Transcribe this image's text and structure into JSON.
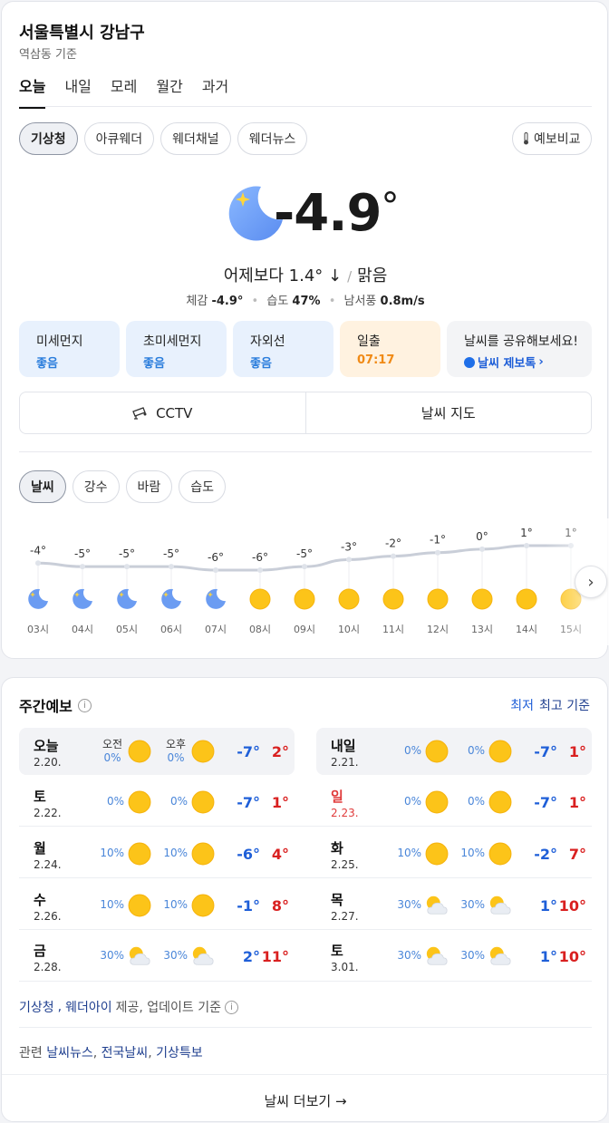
{
  "location": {
    "title": "서울특별시 강남구",
    "subtitle": "역삼동 기준"
  },
  "tabs": [
    "오늘",
    "내일",
    "모레",
    "월간",
    "과거"
  ],
  "sources": [
    "기상청",
    "아큐웨더",
    "웨더채널",
    "웨더뉴스"
  ],
  "compare_label": "예보비교",
  "current": {
    "temp": "-4.9",
    "deg": "°",
    "compare": "어제보다 1.4° ↓",
    "condition": "맑음",
    "feels_label": "체감",
    "feels_value": "-4.9°",
    "humidity_label": "습도",
    "humidity_value": "47%",
    "wind_label": "남서풍",
    "wind_value": "0.8m/s",
    "icon": "moon-star-icon"
  },
  "tiles": [
    {
      "label": "미세먼지",
      "value": "좋음",
      "bg": "#e8f1fd"
    },
    {
      "label": "초미세먼지",
      "value": "좋음",
      "bg": "#e8f1fd"
    },
    {
      "label": "자외선",
      "value": "좋음",
      "bg": "#e8f1fd"
    },
    {
      "label": "일출",
      "value": "07:17",
      "bg": "#fff2e0"
    },
    {
      "label": "날씨를 공유해보세요!",
      "value": "날씨 제보톡",
      "bg": "#f3f4f6"
    }
  ],
  "buttons": {
    "cctv": "CCTV",
    "map": "날씨 지도"
  },
  "hourly_tabs": [
    "날씨",
    "강수",
    "바람",
    "습도"
  ],
  "hourly": [
    {
      "time": "03시",
      "temp": "-4°",
      "icon": "moon"
    },
    {
      "time": "04시",
      "temp": "-5°",
      "icon": "moon"
    },
    {
      "time": "05시",
      "temp": "-5°",
      "icon": "moon"
    },
    {
      "time": "06시",
      "temp": "-5°",
      "icon": "moon"
    },
    {
      "time": "07시",
      "temp": "-6°",
      "icon": "moon"
    },
    {
      "time": "08시",
      "temp": "-6°",
      "icon": "sun"
    },
    {
      "time": "09시",
      "temp": "-5°",
      "icon": "sun"
    },
    {
      "time": "10시",
      "temp": "-3°",
      "icon": "sun"
    },
    {
      "time": "11시",
      "temp": "-2°",
      "icon": "sun"
    },
    {
      "time": "12시",
      "temp": "-1°",
      "icon": "sun"
    },
    {
      "time": "13시",
      "temp": "0°",
      "icon": "sun"
    },
    {
      "time": "14시",
      "temp": "1°",
      "icon": "sun"
    },
    {
      "time": "15시",
      "temp": "1°",
      "icon": "sun"
    }
  ],
  "chart_data": {
    "type": "line",
    "x": [
      "03시",
      "04시",
      "05시",
      "06시",
      "07시",
      "08시",
      "09시",
      "10시",
      "11시",
      "12시",
      "13시",
      "14시",
      "15시"
    ],
    "values": [
      -4,
      -5,
      -5,
      -5,
      -6,
      -6,
      -5,
      -3,
      -2,
      -1,
      0,
      1,
      1
    ],
    "title": "",
    "xlabel": "",
    "ylabel": "",
    "ylim": [
      -6,
      1
    ],
    "grid": false
  },
  "weekly": {
    "title": "주간예보",
    "legend": {
      "low": "최저",
      "high": "최고 기준"
    },
    "am_label": "오전",
    "pm_label": "오후",
    "days": [
      {
        "name": "오늘",
        "date": "2.20.",
        "am_pct": "0%",
        "pm_pct": "0%",
        "am_icon": "sun",
        "pm_icon": "sun",
        "min": "-7°",
        "max": "2°",
        "today": true
      },
      {
        "name": "내일",
        "date": "2.21.",
        "am_pct": "0%",
        "pm_pct": "0%",
        "am_icon": "sun",
        "pm_icon": "sun",
        "min": "-7°",
        "max": "1°",
        "today": true
      },
      {
        "name": "토",
        "date": "2.22.",
        "am_pct": "0%",
        "pm_pct": "0%",
        "am_icon": "sun",
        "pm_icon": "sun",
        "min": "-7°",
        "max": "1°"
      },
      {
        "name": "일",
        "date": "2.23.",
        "am_pct": "0%",
        "pm_pct": "0%",
        "am_icon": "sun",
        "pm_icon": "sun",
        "min": "-7°",
        "max": "1°",
        "sunday": true
      },
      {
        "name": "월",
        "date": "2.24.",
        "am_pct": "10%",
        "pm_pct": "10%",
        "am_icon": "sun",
        "pm_icon": "sun",
        "min": "-6°",
        "max": "4°"
      },
      {
        "name": "화",
        "date": "2.25.",
        "am_pct": "10%",
        "pm_pct": "10%",
        "am_icon": "sun",
        "pm_icon": "sun",
        "min": "-2°",
        "max": "7°"
      },
      {
        "name": "수",
        "date": "2.26.",
        "am_pct": "10%",
        "pm_pct": "10%",
        "am_icon": "sun",
        "pm_icon": "sun",
        "min": "-1°",
        "max": "8°"
      },
      {
        "name": "목",
        "date": "2.27.",
        "am_pct": "30%",
        "pm_pct": "30%",
        "am_icon": "partly",
        "pm_icon": "partly",
        "min": "1°",
        "max": "10°"
      },
      {
        "name": "금",
        "date": "2.28.",
        "am_pct": "30%",
        "pm_pct": "30%",
        "am_icon": "partly",
        "pm_icon": "partly",
        "min": "2°",
        "max": "11°"
      },
      {
        "name": "토",
        "date": "3.01.",
        "am_pct": "30%",
        "pm_pct": "30%",
        "am_icon": "partly",
        "pm_icon": "partly",
        "min": "1°",
        "max": "10°"
      }
    ]
  },
  "credit": {
    "source1": "기상청",
    "comma": ",",
    "source2": "웨더아이",
    "text": "제공, 업데이트 기준"
  },
  "related": {
    "label": "관련",
    "link1": "날씨뉴스",
    "link2": "전국날씨",
    "link3": "기상특보"
  },
  "more_label": "날씨 더보기 →",
  "colors": {
    "low": "#1f5fd8",
    "high": "#d92020",
    "accent": "#2a7ddc"
  }
}
